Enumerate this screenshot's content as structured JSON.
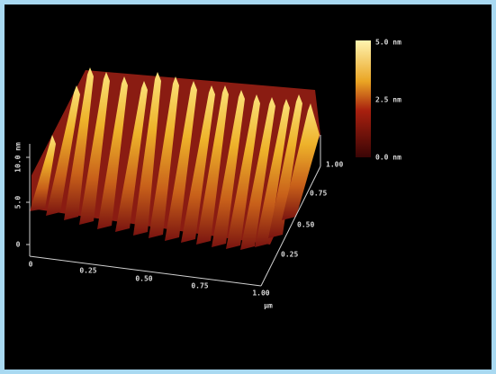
{
  "z_axis": {
    "label": "10.0 nm",
    "ticks": [
      "5.0",
      "0"
    ]
  },
  "x_axis": {
    "ticks": [
      "0",
      "0.25",
      "0.50",
      "0.75",
      "1.00"
    ],
    "unit": "µm"
  },
  "y_axis": {
    "ticks": [
      "0.25",
      "0.50",
      "0.75",
      "1.00"
    ]
  },
  "colorbar": {
    "labels": [
      "5.0 nm",
      "2.5 nm",
      "0.0 nm"
    ]
  }
}
